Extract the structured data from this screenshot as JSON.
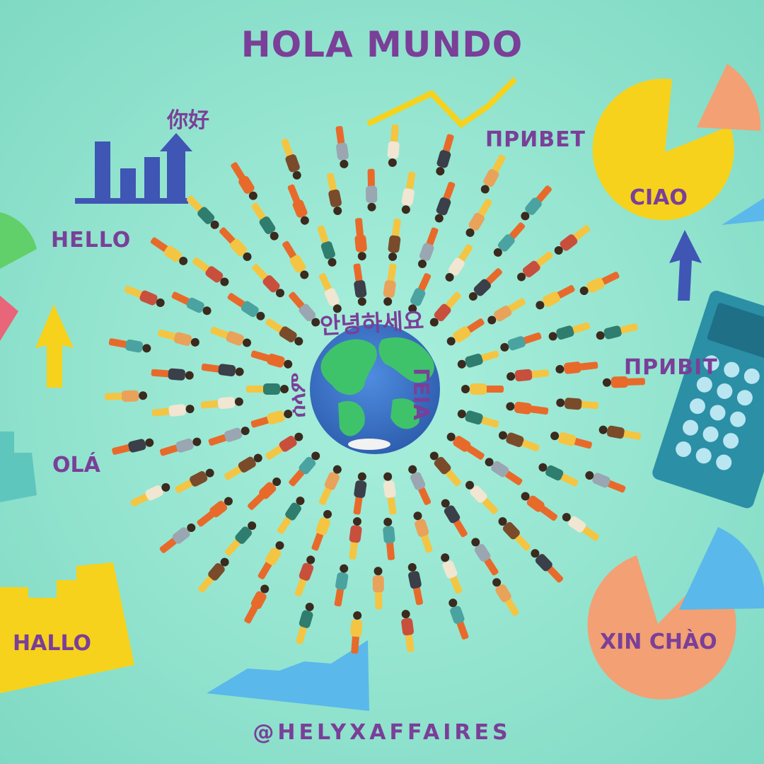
{
  "title": "HOLA MUNDO",
  "handle": "@HELYXAFFAIRES",
  "greetings": {
    "zh": "你好",
    "ru": "ПРИВЕТ",
    "en": "HELLO",
    "it": "CIAO",
    "uk": "ПРИВІТ",
    "pt": "OLÁ",
    "de": "HALLO",
    "vi": "XIN CHÀO",
    "ko": "안녕하세요",
    "el": "ΓΕΙΑ",
    "am": "ሰላም"
  },
  "colors": {
    "background": "#93e4cf",
    "text": "#7a3f98",
    "yellow": "#f6d21c",
    "salmon": "#f3a074",
    "sky_blue": "#5ab8ea",
    "royal_blue": "#3f56b4",
    "calculator": "#2b8fa6",
    "globe_ocean": "#3b74c4",
    "globe_land": "#3ec36a"
  },
  "icons": [
    "bar-chart-icon",
    "pie-chart-icon",
    "calculator-icon",
    "globe-icon",
    "arrow-up-icon",
    "zigzag-line-icon",
    "people-figurines"
  ]
}
